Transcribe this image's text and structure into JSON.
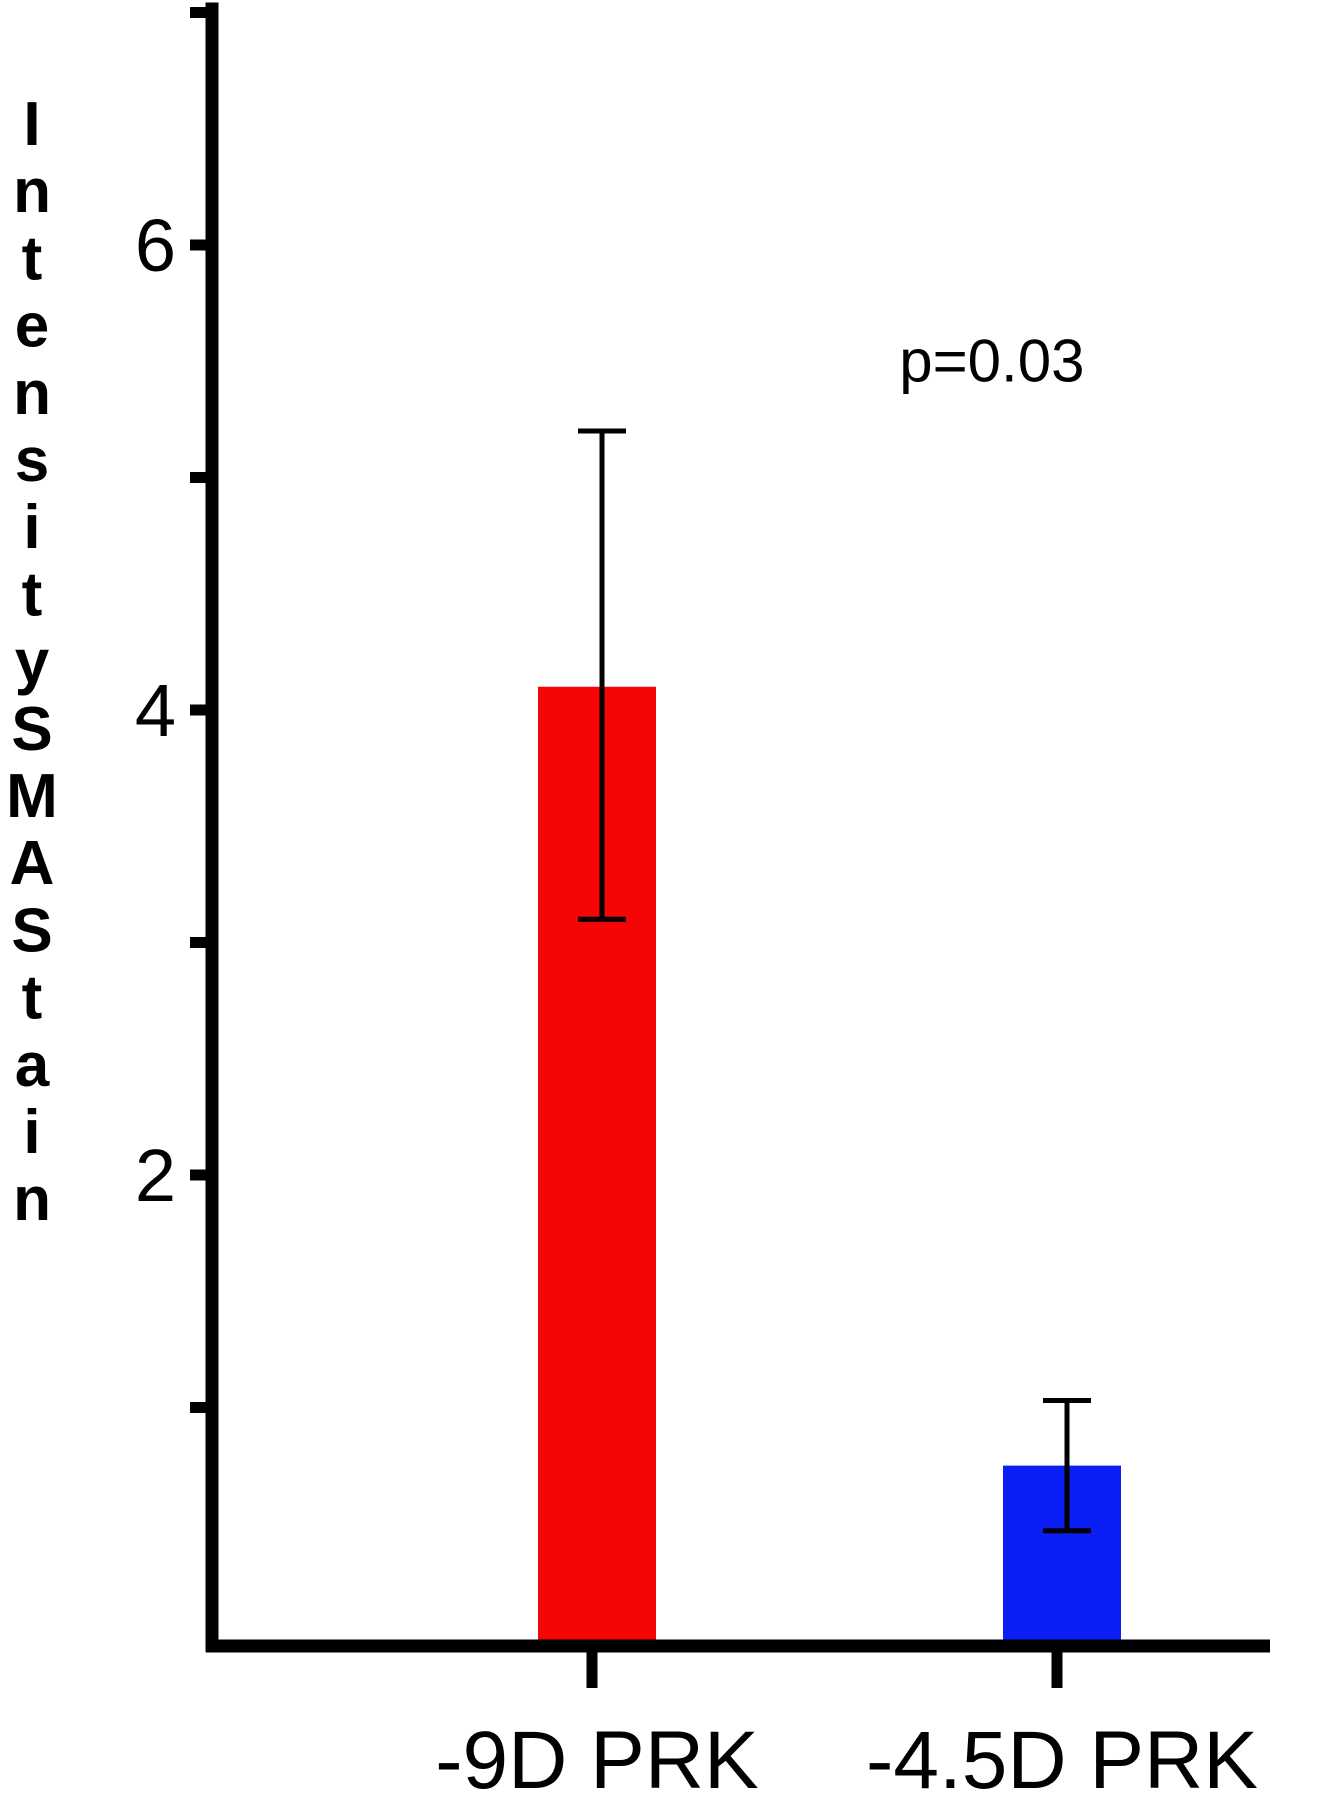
{
  "chart_data": {
    "type": "bar",
    "categories": [
      "-9D PRK",
      "-4.5D PRK"
    ],
    "values": [
      4.1,
      0.75
    ],
    "error": [
      {
        "low": 3.1,
        "high": 5.2
      },
      {
        "low": 0.47,
        "high": 1.03
      }
    ],
    "colors": [
      "#f50505",
      "#0a1ef5"
    ],
    "ylabel": "Intensity SMA Stain",
    "xlabel": "",
    "ylim": [
      0,
      7
    ],
    "yticks": [
      0,
      1,
      2,
      3,
      4,
      5,
      6,
      7
    ],
    "ytick_labels": [
      "",
      "",
      "2",
      "",
      "4",
      "",
      "6",
      ""
    ],
    "annotations": [
      {
        "text": "p=0.03",
        "x": 1.65,
        "y": 5.5
      }
    ],
    "grid": false,
    "legend": "none"
  }
}
